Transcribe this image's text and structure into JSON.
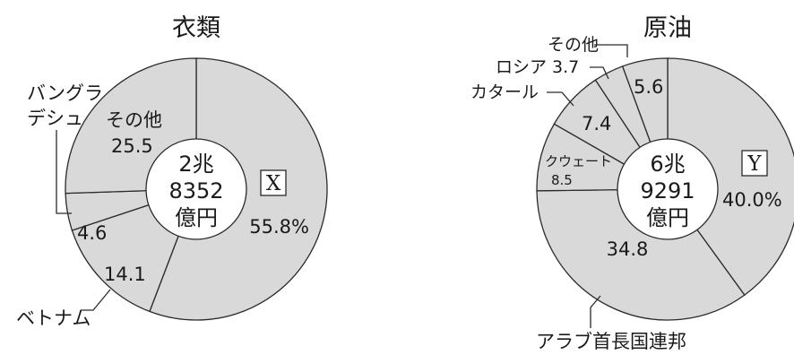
{
  "chart_data": [
    {
      "type": "pie",
      "title": "衣類",
      "center_label": [
        "2兆",
        "8352",
        "億円"
      ],
      "slices": [
        {
          "name": "X",
          "value": 55.8,
          "value_label": "55.8%"
        },
        {
          "name": "ベトナム",
          "value": 14.1,
          "value_label": "14.1"
        },
        {
          "name": "バングラデシュ",
          "value": 4.6,
          "value_label": "4.6"
        },
        {
          "name": "その他",
          "value": 25.5,
          "value_label": "25.5"
        }
      ]
    },
    {
      "type": "pie",
      "title": "原油",
      "center_label": [
        "6兆",
        "9291",
        "億円"
      ],
      "slices": [
        {
          "name": "Y",
          "value": 40.0,
          "value_label": "40.0%"
        },
        {
          "name": "アラブ首長国連邦",
          "value": 34.8,
          "value_label": "34.8"
        },
        {
          "name": "クウェート",
          "value": 8.5,
          "value_label": "8.5"
        },
        {
          "name": "カタール",
          "value": 7.4,
          "value_label": "7.4"
        },
        {
          "name": "ロシア",
          "value": 3.7,
          "value_label": "3.7"
        },
        {
          "name": "その他",
          "value": 5.6,
          "value_label": "5.6"
        }
      ]
    }
  ],
  "label_text": {
    "bangla_line1": "バングラ",
    "bangla_line2": "デシュ",
    "kuwait_line1": "クウェート",
    "russia_combined": "ロシア 3.7"
  },
  "colors": {
    "slice": "#d9d9d9",
    "stroke": "#2a2a2a",
    "hole": "#ffffff"
  }
}
